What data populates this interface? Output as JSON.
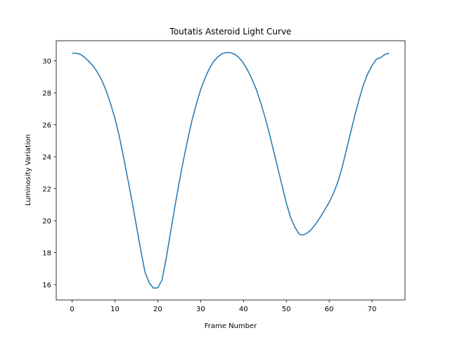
{
  "chart_data": {
    "type": "line",
    "title": "Toutatis Asteroid Light Curve",
    "x_label": "Frame Number",
    "y_label": "Luminosity Variation",
    "x": [
      0,
      1,
      2,
      3,
      4,
      5,
      6,
      7,
      8,
      9,
      10,
      11,
      12,
      13,
      14,
      15,
      16,
      17,
      18,
      19,
      20,
      21,
      22,
      23,
      24,
      25,
      26,
      27,
      28,
      29,
      30,
      31,
      32,
      33,
      34,
      35,
      36,
      37,
      38,
      39,
      40,
      41,
      42,
      43,
      44,
      45,
      46,
      47,
      48,
      49,
      50,
      51,
      52,
      53,
      54,
      55,
      56,
      57,
      58,
      59,
      60,
      61,
      62,
      63,
      64,
      65,
      66,
      67,
      68,
      69,
      70,
      71,
      72,
      73,
      74
    ],
    "series": [
      {
        "color": "#1f77b4",
        "values": [
          30.48,
          30.48,
          30.4,
          30.2,
          29.95,
          29.65,
          29.25,
          28.75,
          28.1,
          27.3,
          26.4,
          25.3,
          24.0,
          22.6,
          21.2,
          19.7,
          18.2,
          16.8,
          16.1,
          15.78,
          15.8,
          16.3,
          17.7,
          19.3,
          20.9,
          22.4,
          23.8,
          25.1,
          26.3,
          27.3,
          28.2,
          28.9,
          29.5,
          29.95,
          30.25,
          30.45,
          30.52,
          30.52,
          30.4,
          30.2,
          29.85,
          29.4,
          28.85,
          28.2,
          27.4,
          26.5,
          25.5,
          24.4,
          23.3,
          22.2,
          21.1,
          20.2,
          19.6,
          19.15,
          19.1,
          19.25,
          19.5,
          19.85,
          20.25,
          20.7,
          21.15,
          21.7,
          22.4,
          23.3,
          24.4,
          25.5,
          26.6,
          27.6,
          28.5,
          29.2,
          29.7,
          30.1,
          30.2,
          30.4,
          30.48
        ]
      }
    ],
    "xlim": [
      -3.7,
      77.7
    ],
    "ylim": [
      15.04,
      31.26
    ],
    "xticks": [
      0,
      10,
      20,
      30,
      40,
      50,
      60,
      70
    ],
    "yticks": [
      16,
      18,
      20,
      22,
      24,
      26,
      28,
      30
    ]
  }
}
